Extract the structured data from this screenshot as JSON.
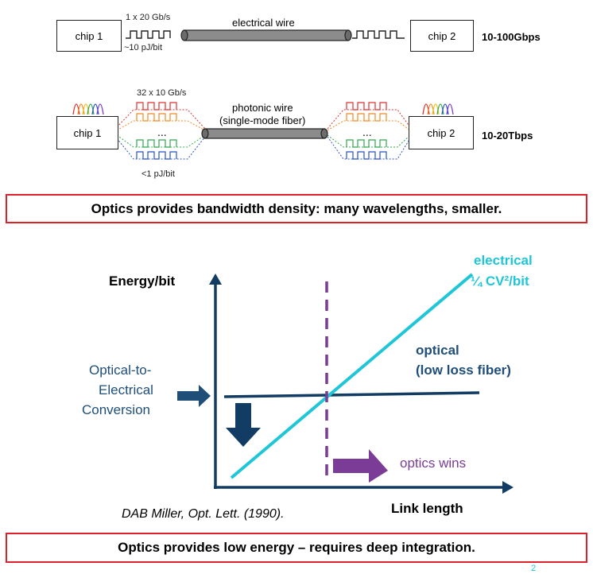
{
  "top_diagram": {
    "electrical_row": {
      "chip_left": "chip 1",
      "chip_right": "chip 2",
      "rate_label": "1 x 20 Gb/s",
      "energy_label": "~10 pJ/bit",
      "wire_label": "electrical wire",
      "bandwidth": "10-100Gbps"
    },
    "photonic_row": {
      "chip_left": "chip 1",
      "chip_right": "chip 2",
      "rate_label": "32 x 10 Gb/s",
      "energy_label": "<1 pJ/bit",
      "wire_label_line1": "photonic wire",
      "wire_label_line2": "(single-mode fiber)",
      "ellipsis": "...",
      "bandwidth": "10-20Tbps"
    }
  },
  "callout_top": "Optics provides bandwidth density: many wavelengths, smaller.",
  "energy_chart": {
    "y_axis_label": "Energy/bit",
    "x_axis_label": "Link length",
    "electrical_label_line1": "electrical",
    "electrical_label_line2": "¼ CV²/bit",
    "optical_label_line1": "optical",
    "optical_label_line2": "(low loss fiber)",
    "oe_label_line1": "Optical-to-",
    "oe_label_line2": "Electrical",
    "oe_label_line3": "Conversion",
    "optics_wins": "optics wins",
    "citation": "DAB Miller, Opt. Lett. (1990).",
    "colors": {
      "electrical": "#1ec6d8",
      "optical": "#123c63",
      "crossover": "#7a3c96",
      "oe_text": "#1f4e79"
    }
  },
  "callout_bottom": "Optics provides low energy – requires deep integration.",
  "page_number": "2",
  "diagram_colors": {
    "waves": [
      "#e03030",
      "#f08a24",
      "#2fa84f",
      "#2a52c9"
    ],
    "wire": "#8c8c8c"
  }
}
